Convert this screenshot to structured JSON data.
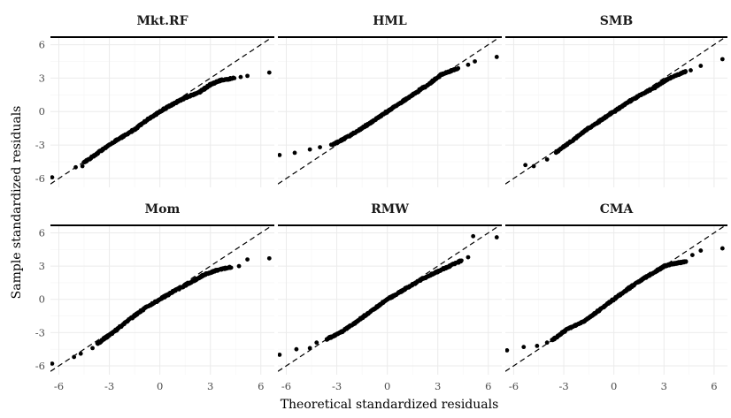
{
  "chart_data": {
    "type": "scatter",
    "subtype": "qq-plot-facets",
    "xlabel": "Theoretical standardized residuals",
    "ylabel": "Sample standardized residuals",
    "xlim": [
      -6.5,
      6.8
    ],
    "ylim": [
      -6.8,
      6.6
    ],
    "x_ticks": [
      -6,
      -3,
      0,
      3,
      6
    ],
    "y_ticks": [
      -6,
      -3,
      0,
      3,
      6
    ],
    "x_tick_labels": [
      "-6",
      "-3",
      "0",
      "3",
      "6"
    ],
    "y_tick_labels": [
      "-6",
      "-3",
      "0",
      "3",
      "6"
    ],
    "grid": true,
    "reference_line": "y = x (dashed)",
    "facets": [
      {
        "name": "Mkt.RF",
        "curve": [
          [
            -4.5,
            -4.6
          ],
          [
            -3.5,
            -3.5
          ],
          [
            -2.5,
            -2.5
          ],
          [
            -1.5,
            -1.6
          ],
          [
            -0.8,
            -0.8
          ],
          [
            0,
            0
          ],
          [
            0.8,
            0.7
          ],
          [
            1.6,
            1.3
          ],
          [
            2.3,
            1.7
          ],
          [
            3.0,
            2.4
          ],
          [
            3.6,
            2.8
          ],
          [
            4.4,
            3.0
          ]
        ],
        "outliers": [
          [
            -6.4,
            -5.9
          ],
          [
            -5.0,
            -5.0
          ],
          [
            -4.6,
            -4.9
          ],
          [
            -3.8,
            -3.9
          ],
          [
            4.8,
            3.1
          ],
          [
            5.2,
            3.2
          ],
          [
            6.5,
            3.5
          ]
        ]
      },
      {
        "name": "HML",
        "curve": [
          [
            -3.3,
            -3.0
          ],
          [
            -2.5,
            -2.4
          ],
          [
            -1.6,
            -1.6
          ],
          [
            -0.8,
            -0.8
          ],
          [
            0,
            0
          ],
          [
            0.8,
            0.8
          ],
          [
            1.6,
            1.6
          ],
          [
            2.5,
            2.5
          ],
          [
            3.2,
            3.3
          ],
          [
            4.2,
            3.9
          ]
        ],
        "outliers": [
          [
            -6.4,
            -3.9
          ],
          [
            -5.5,
            -3.7
          ],
          [
            -4.6,
            -3.4
          ],
          [
            -4.0,
            -3.2
          ],
          [
            4.8,
            4.2
          ],
          [
            5.2,
            4.5
          ],
          [
            6.5,
            4.9
          ]
        ]
      },
      {
        "name": "SMB",
        "curve": [
          [
            -3.5,
            -3.7
          ],
          [
            -2.5,
            -2.6
          ],
          [
            -1.6,
            -1.6
          ],
          [
            -0.8,
            -0.8
          ],
          [
            0,
            0
          ],
          [
            0.8,
            0.8
          ],
          [
            1.6,
            1.5
          ],
          [
            2.5,
            2.2
          ],
          [
            3.2,
            2.9
          ],
          [
            4.3,
            3.6
          ]
        ],
        "outliers": [
          [
            -5.3,
            -4.8
          ],
          [
            -4.8,
            -4.9
          ],
          [
            -4.0,
            -4.3
          ],
          [
            4.6,
            3.7
          ],
          [
            5.2,
            4.1
          ],
          [
            6.5,
            4.7
          ]
        ]
      },
      {
        "name": "Mom",
        "curve": [
          [
            -3.7,
            -4.0
          ],
          [
            -2.8,
            -3.0
          ],
          [
            -1.8,
            -1.8
          ],
          [
            -0.9,
            -0.8
          ],
          [
            0,
            0
          ],
          [
            0.9,
            0.8
          ],
          [
            1.8,
            1.5
          ],
          [
            2.6,
            2.2
          ],
          [
            3.3,
            2.6
          ],
          [
            4.2,
            2.9
          ]
        ],
        "outliers": [
          [
            -6.4,
            -5.8
          ],
          [
            -5.1,
            -5.2
          ],
          [
            -4.7,
            -4.9
          ],
          [
            -4.0,
            -4.4
          ],
          [
            4.7,
            3.0
          ],
          [
            5.2,
            3.6
          ],
          [
            6.5,
            3.7
          ]
        ]
      },
      {
        "name": "RMW",
        "curve": [
          [
            -3.6,
            -3.6
          ],
          [
            -2.8,
            -3.0
          ],
          [
            -1.8,
            -2.0
          ],
          [
            -0.9,
            -1.0
          ],
          [
            0,
            0
          ],
          [
            0.9,
            0.8
          ],
          [
            1.8,
            1.6
          ],
          [
            2.7,
            2.3
          ],
          [
            3.4,
            2.8
          ],
          [
            4.4,
            3.5
          ]
        ],
        "outliers": [
          [
            -6.4,
            -5.0
          ],
          [
            -5.4,
            -4.5
          ],
          [
            -4.6,
            -4.4
          ],
          [
            -4.2,
            -3.9
          ],
          [
            4.8,
            3.8
          ],
          [
            5.1,
            5.7
          ],
          [
            6.5,
            5.6
          ]
        ]
      },
      {
        "name": "CMA",
        "curve": [
          [
            -3.7,
            -3.7
          ],
          [
            -2.8,
            -2.7
          ],
          [
            -1.8,
            -2.0
          ],
          [
            -0.9,
            -1.0
          ],
          [
            0,
            0
          ],
          [
            0.9,
            1.0
          ],
          [
            1.8,
            1.9
          ],
          [
            2.6,
            2.6
          ],
          [
            3.0,
            3.0
          ],
          [
            3.5,
            3.2
          ],
          [
            4.3,
            3.4
          ]
        ],
        "outliers": [
          [
            -6.4,
            -4.6
          ],
          [
            -5.4,
            -4.3
          ],
          [
            -4.6,
            -4.2
          ],
          [
            -4.0,
            -3.9
          ],
          [
            4.7,
            4.0
          ],
          [
            5.2,
            4.4
          ],
          [
            6.5,
            4.6
          ]
        ]
      }
    ]
  }
}
